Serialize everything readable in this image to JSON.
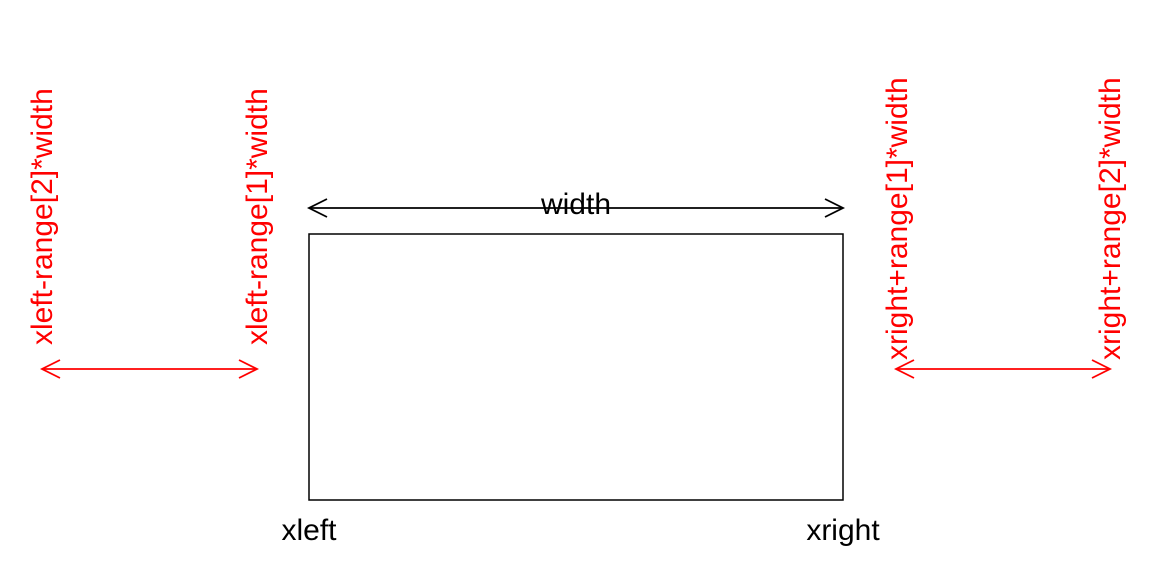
{
  "diagram": {
    "labels": {
      "width": "width",
      "xleft": "xleft",
      "xright": "xright",
      "xleft_range2": "xleft-range[2]*width",
      "xleft_range1": "xleft-range[1]*width",
      "xright_range1": "xright+range[1]*width",
      "xright_range2": "xright+range[2]*width"
    },
    "colors": {
      "main": "#000000",
      "range": "#ff0000"
    }
  }
}
